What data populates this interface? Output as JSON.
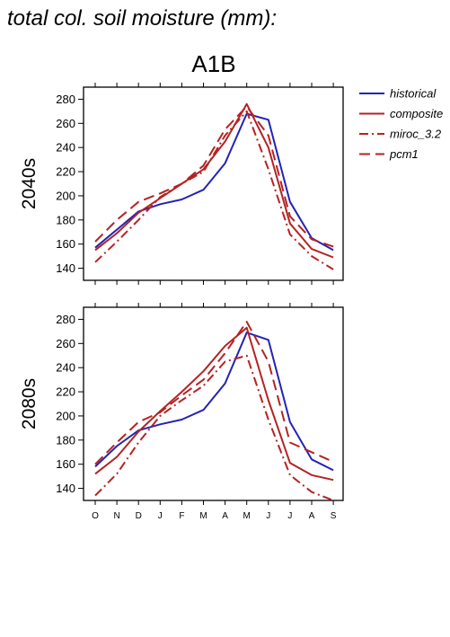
{
  "title": "total col. soil moisture (mm):",
  "chart_data": {
    "type": "line",
    "scenario": "A1B",
    "categories": [
      "O",
      "N",
      "D",
      "J",
      "F",
      "M",
      "A",
      "M",
      "J",
      "J",
      "A",
      "S"
    ],
    "ylim": [
      130,
      290
    ],
    "yticks": [
      140,
      160,
      180,
      200,
      220,
      240,
      260,
      280
    ],
    "grid": false,
    "legend_position": "right",
    "colors": {
      "historical": "#2323b4",
      "projection": "#b42323"
    },
    "series_styles": {
      "historical": "solid",
      "composite": "solid",
      "miroc_3.2": "dashdot",
      "pcm1": "dashed"
    },
    "legend": [
      "historical",
      "composite",
      "miroc_3.2",
      "pcm1"
    ],
    "panels": [
      {
        "period": "2040s",
        "series": [
          {
            "name": "historical",
            "values": [
              157,
              172,
              187,
              193,
              197,
              205,
              227,
              268,
              263,
              195,
              165,
              155
            ]
          },
          {
            "name": "composite",
            "values": [
              155,
              169,
              186,
              198,
              210,
              222,
              245,
              276,
              240,
              177,
              156,
              149
            ]
          },
          {
            "name": "miroc_3.2",
            "values": [
              145,
              162,
              180,
              199,
              210,
              220,
              250,
              270,
              222,
              168,
              150,
              139
            ]
          },
          {
            "name": "pcm1",
            "values": [
              162,
              180,
              195,
              202,
              210,
              225,
              255,
              274,
              250,
              183,
              164,
              158
            ]
          }
        ]
      },
      {
        "period": "2080s",
        "series": [
          {
            "name": "historical",
            "values": [
              158,
              175,
              188,
              193,
              197,
              205,
              227,
              269,
              263,
              195,
              164,
              155
            ]
          },
          {
            "name": "composite",
            "values": [
              152,
              166,
              187,
              204,
              220,
              237,
              258,
              273,
              213,
              161,
              151,
              147
            ]
          },
          {
            "name": "miroc_3.2",
            "values": [
              134,
              152,
              178,
              200,
              213,
              225,
              245,
              250,
              197,
              151,
              137,
              130
            ]
          },
          {
            "name": "pcm1",
            "values": [
              160,
              178,
              195,
              203,
              217,
              230,
              252,
              278,
              245,
              178,
              170,
              162
            ]
          }
        ]
      }
    ]
  }
}
